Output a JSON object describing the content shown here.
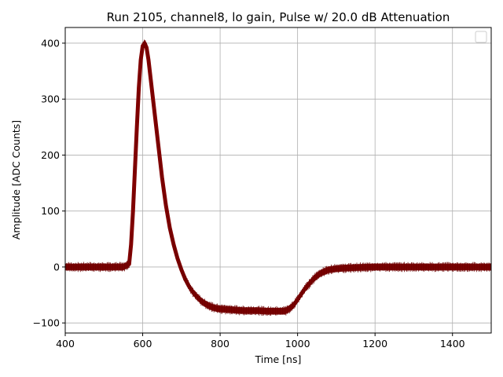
{
  "chart_data": {
    "type": "line",
    "title": "Run 2105, channel8, lo gain, Pulse w/ 20.0 dB Attenuation",
    "xlabel": "Time [ns]",
    "ylabel": "Amplitude [ADC Counts]",
    "xlim": [
      400,
      1500
    ],
    "ylim": [
      -118,
      428
    ],
    "xticks": [
      400,
      600,
      800,
      1000,
      1200,
      1400
    ],
    "yticks": [
      -100,
      0,
      100,
      200,
      300,
      400
    ],
    "xtick_labels": [
      "400",
      "600",
      "800",
      "1000",
      "1200",
      "1400"
    ],
    "ytick_labels": [
      "−100",
      "0",
      "100",
      "200",
      "300",
      "400"
    ],
    "grid": true,
    "legend": "top-right",
    "line_color": "#800000",
    "band_halfwidth": 6,
    "series": [
      {
        "x": [
          400,
          450,
          500,
          550,
          565,
          570,
          575,
          580,
          585,
          590,
          595,
          600,
          605,
          610,
          615,
          620,
          630,
          640,
          650,
          660,
          670,
          680,
          690,
          700,
          710,
          720,
          730,
          740,
          750,
          760,
          770,
          780,
          790,
          800,
          820,
          840,
          860,
          880,
          900,
          920,
          940,
          960,
          970,
          980,
          990,
          1000,
          1010,
          1020,
          1030,
          1040,
          1050,
          1060,
          1070,
          1080,
          1100,
          1120,
          1150,
          1200,
          1300,
          1400,
          1500
        ],
        "y": [
          0,
          0,
          0,
          0,
          5,
          40,
          100,
          175,
          250,
          320,
          370,
          395,
          400,
          392,
          370,
          340,
          280,
          220,
          160,
          110,
          70,
          40,
          15,
          -5,
          -22,
          -35,
          -45,
          -53,
          -60,
          -65,
          -69,
          -72,
          -74,
          -75,
          -76,
          -77,
          -78,
          -78,
          -78,
          -79,
          -79,
          -79,
          -78,
          -74,
          -68,
          -58,
          -48,
          -38,
          -30,
          -22,
          -16,
          -11,
          -8,
          -5,
          -3,
          -2,
          -1,
          0,
          0,
          0,
          0
        ]
      }
    ]
  }
}
